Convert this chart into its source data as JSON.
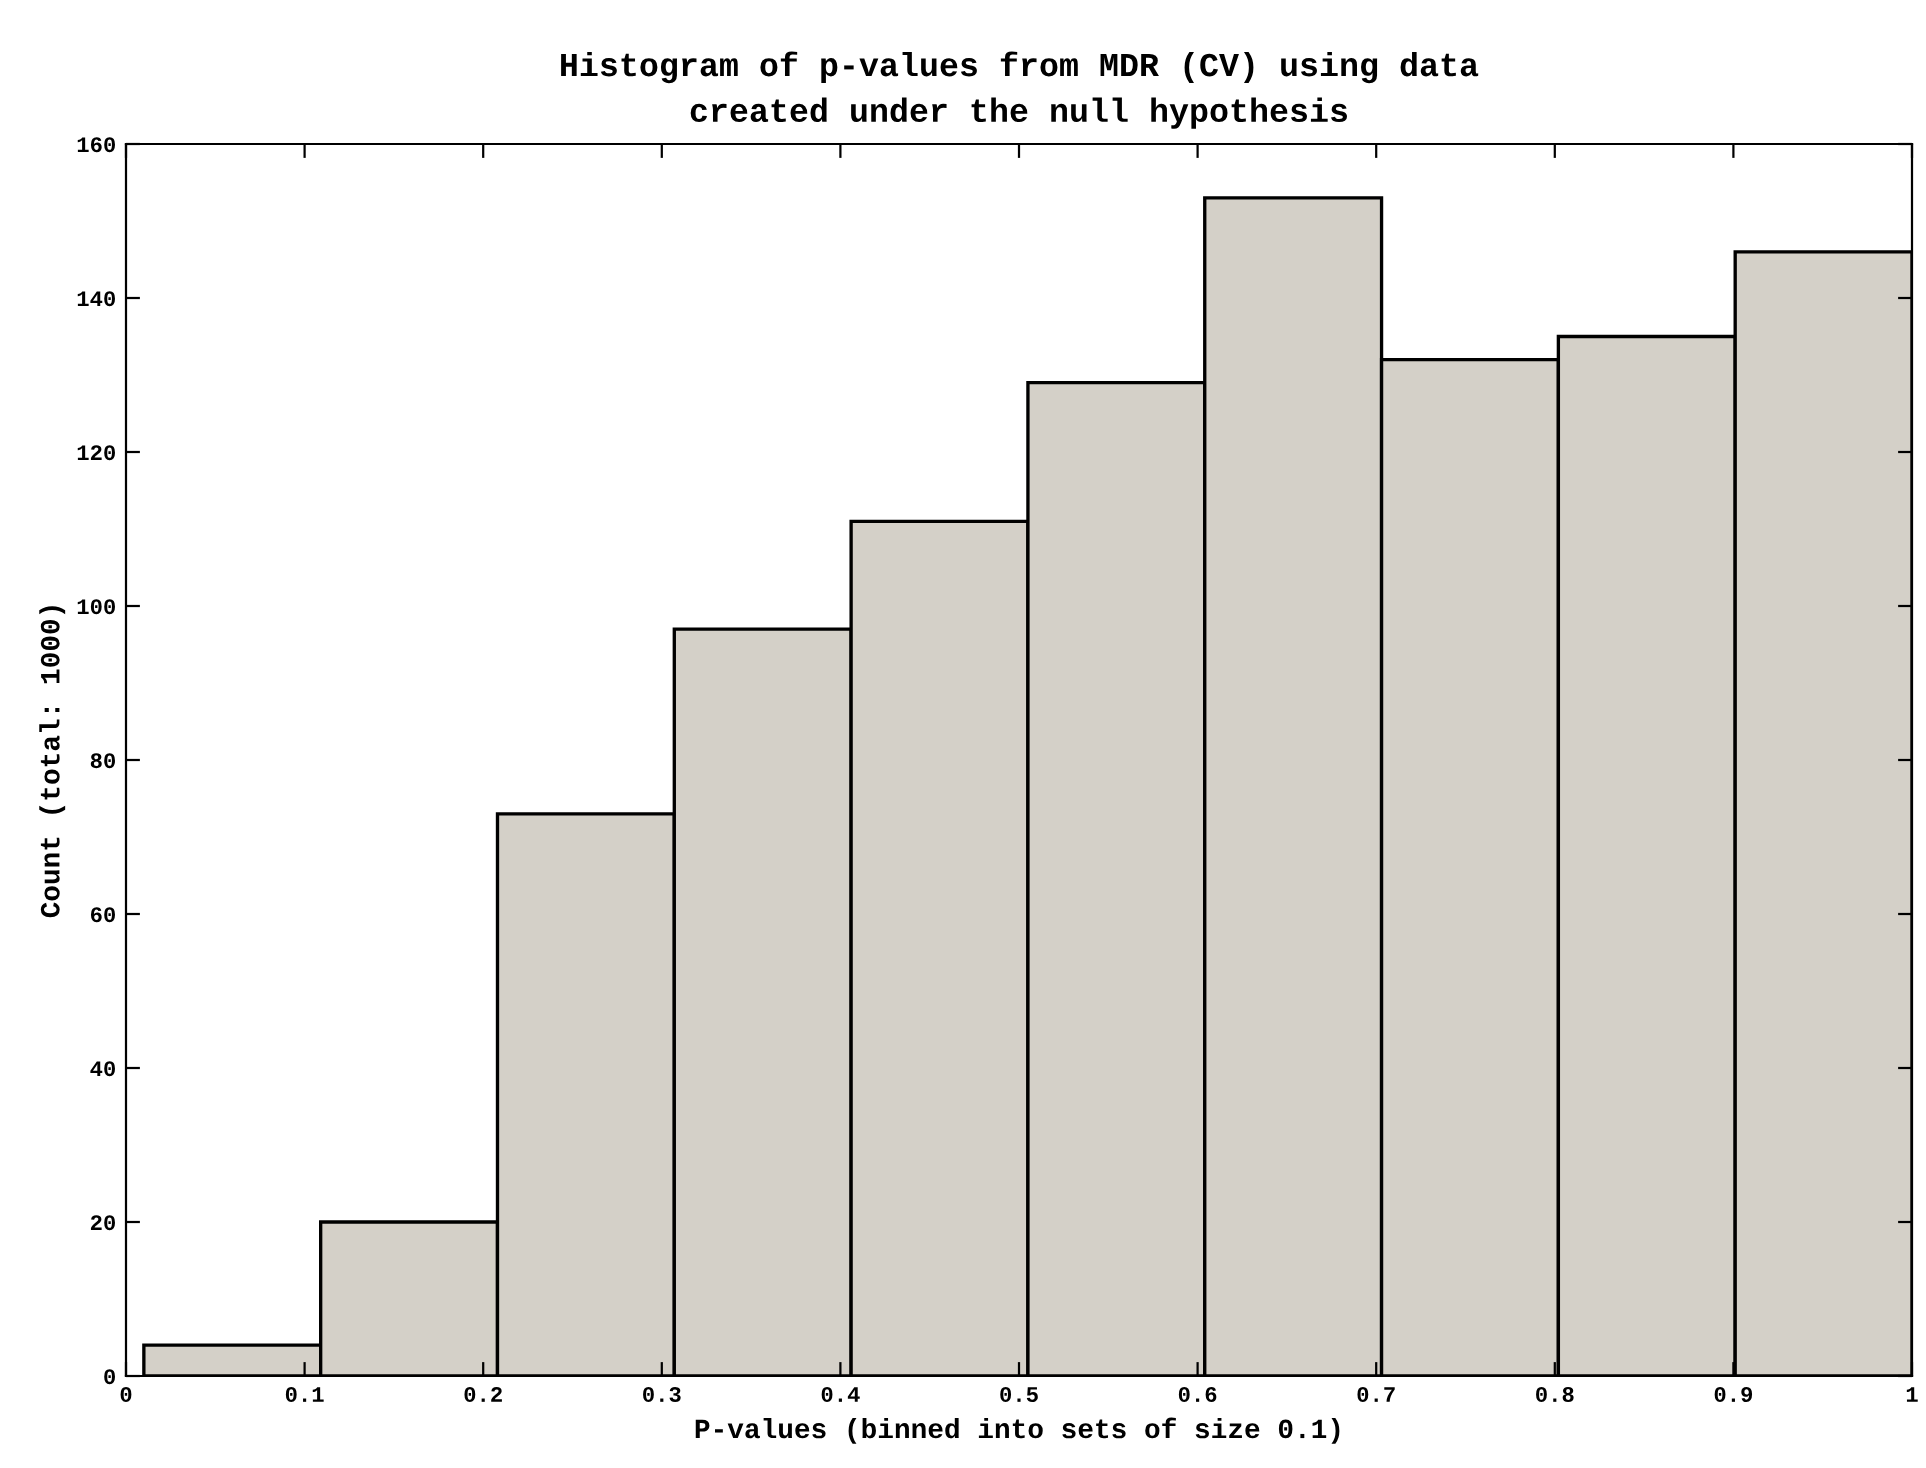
{
  "chart_data": {
    "type": "histogram",
    "title": "Histogram of p-values from MDR (CV) using data\ncreated under the null hypothesis",
    "xlabel": "P-values (binned into sets of size 0.1)",
    "ylabel": "Count (total: 1000)",
    "bins": [
      0.01,
      0.109,
      0.208,
      0.307,
      0.406,
      0.505,
      0.604,
      0.703,
      0.802,
      0.901,
      1.0
    ],
    "values": [
      4,
      20,
      73,
      97,
      111,
      129,
      153,
      132,
      135,
      146
    ],
    "color": "#d4d0c8",
    "xlim": [
      0,
      1
    ],
    "xticks": [
      0,
      0.1,
      0.2,
      0.3,
      0.4,
      0.5,
      0.6,
      0.7,
      0.8,
      0.9,
      1
    ],
    "ylim": [
      0,
      160
    ],
    "yticks": [
      0,
      20,
      40,
      60,
      80,
      100,
      120,
      140,
      160
    ],
    "grid": false,
    "legend": false
  }
}
